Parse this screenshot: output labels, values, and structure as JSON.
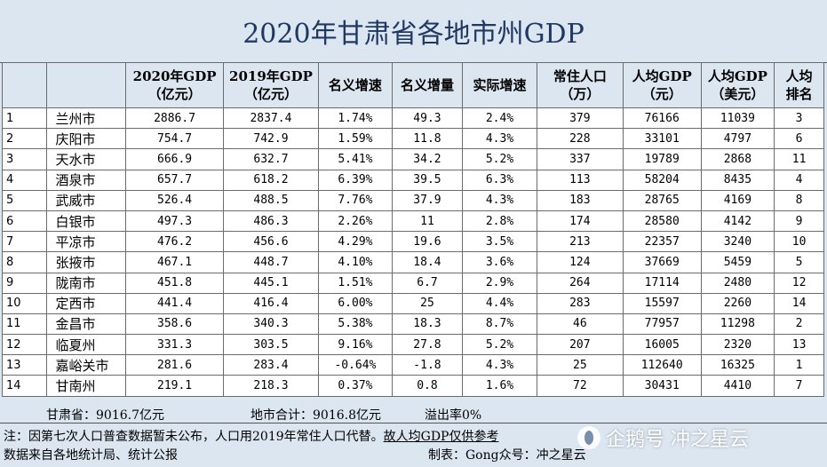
{
  "title": "2020年甘肃省各地市州GDP",
  "table": {
    "headers": [
      "",
      "",
      "2020年GDP\n（亿元）",
      "2019年GDP\n（亿元）",
      "名义增速",
      "名义增量",
      "实际增速",
      "常住人口\n（万）",
      "人均GDP\n（元）",
      "人均GDP\n（美元）",
      "人均\n排名"
    ],
    "rows": [
      [
        "1",
        "兰州市",
        "2886.7",
        "2837.4",
        "1.74%",
        "49.3",
        "2.4%",
        "379",
        "76166",
        "11039",
        "3"
      ],
      [
        "2",
        "庆阳市",
        "754.7",
        "742.9",
        "1.59%",
        "11.8",
        "4.3%",
        "228",
        "33101",
        "4797",
        "6"
      ],
      [
        "3",
        "天水市",
        "666.9",
        "632.7",
        "5.41%",
        "34.2",
        "5.2%",
        "337",
        "19789",
        "2868",
        "11"
      ],
      [
        "4",
        "酒泉市",
        "657.7",
        "618.2",
        "6.39%",
        "39.5",
        "6.3%",
        "113",
        "58204",
        "8435",
        "4"
      ],
      [
        "5",
        "武威市",
        "526.4",
        "488.5",
        "7.76%",
        "37.9",
        "4.3%",
        "183",
        "28765",
        "4169",
        "8"
      ],
      [
        "6",
        "白银市",
        "497.3",
        "486.3",
        "2.26%",
        "11",
        "2.8%",
        "174",
        "28580",
        "4142",
        "9"
      ],
      [
        "7",
        "平凉市",
        "476.2",
        "456.6",
        "4.29%",
        "19.6",
        "3.5%",
        "213",
        "22357",
        "3240",
        "10"
      ],
      [
        "8",
        "张掖市",
        "467.1",
        "448.7",
        "4.10%",
        "18.4",
        "3.6%",
        "124",
        "37669",
        "5459",
        "5"
      ],
      [
        "9",
        "陇南市",
        "451.8",
        "445.1",
        "1.51%",
        "6.7",
        "2.9%",
        "264",
        "17114",
        "2480",
        "12"
      ],
      [
        "10",
        "定西市",
        "441.4",
        "416.4",
        "6.00%",
        "25",
        "4.4%",
        "283",
        "15597",
        "2260",
        "14"
      ],
      [
        "11",
        "金昌市",
        "358.6",
        "340.3",
        "5.38%",
        "18.3",
        "8.7%",
        "46",
        "77957",
        "11298",
        "2"
      ],
      [
        "12",
        "临夏州",
        "331.3",
        "303.5",
        "9.16%",
        "27.8",
        "5.2%",
        "207",
        "16005",
        "2320",
        "13"
      ],
      [
        "13",
        "嘉峪关市",
        "281.6",
        "283.4",
        "-0.64%",
        "-1.8",
        "4.3%",
        "25",
        "112640",
        "16325",
        "1"
      ],
      [
        "14",
        "甘南州",
        "219.1",
        "218.3",
        "0.37%",
        "0.8",
        "1.6%",
        "72",
        "30431",
        "4410",
        "7"
      ]
    ]
  },
  "summary": {
    "province": "甘肃省：9016.7亿元",
    "total": "地市合计：9016.8亿元",
    "overflow": "溢出率0%"
  },
  "notes": {
    "note1_a": "注：因第七次人口普查数据暂未公布，人口用2019年常住人口代替。",
    "note1_b": "故人均GDP仅供参考",
    "note2": "数据来自各地统计局、统计公报",
    "note3": "制表：Gong众号：冲之星云"
  },
  "watermark": {
    "text": "企鹅号 冲之星云",
    "icon": "penguin-logo-icon"
  },
  "colors": {
    "header_bg": "#dce6f1",
    "title_text": "#1f3864",
    "grid": "#6b6b6b"
  }
}
